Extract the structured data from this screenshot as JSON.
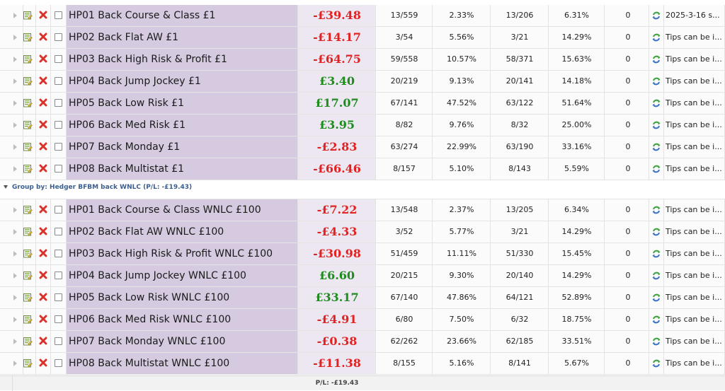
{
  "top_rows": [
    {
      "name": "HP01 Back Course & Class £1",
      "pl": "-£39.48",
      "pl_sign": "neg",
      "win_strikes": "13/559",
      "win_pct": "2.33%",
      "place_strikes": "13/206",
      "place_pct": "6.31%",
      "zero": "0",
      "note": "2025-3-16 s..."
    },
    {
      "name": "HP02 Back Flat AW £1",
      "pl": "-£14.17",
      "pl_sign": "neg",
      "win_strikes": "3/54",
      "win_pct": "5.56%",
      "place_strikes": "3/21",
      "place_pct": "14.29%",
      "zero": "0",
      "note": "Tips can be i..."
    },
    {
      "name": "HP03 Back High Risk & Profit £1",
      "pl": "-£64.75",
      "pl_sign": "neg",
      "win_strikes": "59/558",
      "win_pct": "10.57%",
      "place_strikes": "58/371",
      "place_pct": "15.63%",
      "zero": "0",
      "note": "Tips can be i..."
    },
    {
      "name": "HP04 Back Jump Jockey £1",
      "pl": "£3.40",
      "pl_sign": "pos",
      "win_strikes": "20/219",
      "win_pct": "9.13%",
      "place_strikes": "20/141",
      "place_pct": "14.18%",
      "zero": "0",
      "note": "Tips can be i..."
    },
    {
      "name": "HP05 Back Low Risk £1",
      "pl": "£17.07",
      "pl_sign": "pos",
      "win_strikes": "67/141",
      "win_pct": "47.52%",
      "place_strikes": "63/122",
      "place_pct": "51.64%",
      "zero": "0",
      "note": "Tips can be i..."
    },
    {
      "name": "HP06 Back Med Risk £1",
      "pl": "£3.95",
      "pl_sign": "pos",
      "win_strikes": "8/82",
      "win_pct": "9.76%",
      "place_strikes": "8/32",
      "place_pct": "25.00%",
      "zero": "0",
      "note": "Tips can be i..."
    },
    {
      "name": "HP07 Back Monday £1",
      "pl": "-£2.83",
      "pl_sign": "neg",
      "win_strikes": "63/274",
      "win_pct": "22.99%",
      "place_strikes": "63/190",
      "place_pct": "33.16%",
      "zero": "0",
      "note": "Tips can be i..."
    },
    {
      "name": "HP08 Back Multistat £1",
      "pl": "-£66.46",
      "pl_sign": "neg",
      "win_strikes": "8/157",
      "win_pct": "5.10%",
      "place_strikes": "8/143",
      "place_pct": "5.59%",
      "zero": "0",
      "note": "Tips can be i..."
    }
  ],
  "group": {
    "label": "Group by: Hedger BFBM back WNLC (P/L: -£19.43)"
  },
  "group_rows": [
    {
      "name": "HP01 Back Course & Class WNLC £100",
      "pl": "-£7.22",
      "pl_sign": "neg",
      "win_strikes": "13/548",
      "win_pct": "2.37%",
      "place_strikes": "13/205",
      "place_pct": "6.34%",
      "zero": "0",
      "note": "Tips can be i..."
    },
    {
      "name": "HP02 Back Flat AW WNLC £100",
      "pl": "-£4.33",
      "pl_sign": "neg",
      "win_strikes": "3/52",
      "win_pct": "5.77%",
      "place_strikes": "3/21",
      "place_pct": "14.29%",
      "zero": "0",
      "note": "Tips can be i..."
    },
    {
      "name": "HP03 Back High Risk & Profit WNLC £100",
      "pl": "-£30.98",
      "pl_sign": "neg",
      "win_strikes": "51/459",
      "win_pct": "11.11%",
      "place_strikes": "51/330",
      "place_pct": "15.45%",
      "zero": "0",
      "note": "Tips can be i..."
    },
    {
      "name": "HP04 Back Jump Jockey WNLC £100",
      "pl": "£6.60",
      "pl_sign": "pos",
      "win_strikes": "20/215",
      "win_pct": "9.30%",
      "place_strikes": "20/140",
      "place_pct": "14.29%",
      "zero": "0",
      "note": "Tips can be i..."
    },
    {
      "name": "HP05 Back Low Risk WNLC £100",
      "pl": "£33.17",
      "pl_sign": "pos",
      "win_strikes": "67/140",
      "win_pct": "47.86%",
      "place_strikes": "64/121",
      "place_pct": "52.89%",
      "zero": "0",
      "note": "Tips can be i..."
    },
    {
      "name": "HP06 Back Med Risk WNLC £100",
      "pl": "-£4.91",
      "pl_sign": "neg",
      "win_strikes": "6/80",
      "win_pct": "7.50%",
      "place_strikes": "6/32",
      "place_pct": "18.75%",
      "zero": "0",
      "note": "Tips can be i..."
    },
    {
      "name": "HP07 Back Monday WNLC £100",
      "pl": "-£0.38",
      "pl_sign": "neg",
      "win_strikes": "62/262",
      "win_pct": "23.66%",
      "place_strikes": "62/185",
      "place_pct": "33.51%",
      "zero": "0",
      "note": "Tips can be i..."
    },
    {
      "name": "HP08 Back Multistat WNLC £100",
      "pl": "-£11.38",
      "pl_sign": "neg",
      "win_strikes": "8/155",
      "win_pct": "5.16%",
      "place_strikes": "8/141",
      "place_pct": "5.67%",
      "zero": "0",
      "note": "Tips can be i..."
    }
  ],
  "footer": {
    "pl_summary": "P/L: -£19.43"
  },
  "colors": {
    "negative": "#e22222",
    "positive": "#1e8c1e",
    "name_cell": "#d5cae0",
    "group_label": "#3a5f8f"
  },
  "icons": {
    "edit": "edit-icon",
    "delete": "delete-icon",
    "refresh": "refresh-icon",
    "expand": "expand-arrow-icon",
    "collapse": "collapse-arrow-icon"
  }
}
